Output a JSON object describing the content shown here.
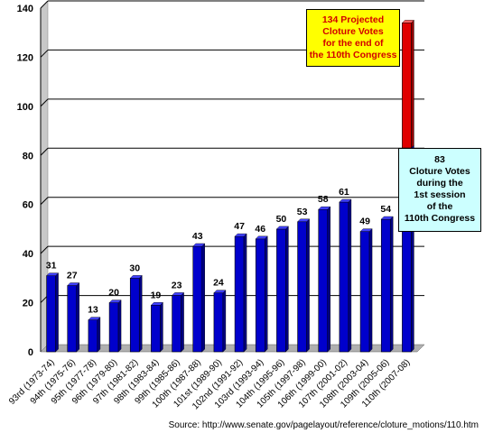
{
  "chart_data": {
    "type": "bar",
    "categories": [
      "93rd (1973-74)",
      "94th (1975-76)",
      "95th (1977-78)",
      "96th (1979-80)",
      "97th (1981-82)",
      "98th (1983-84)",
      "99th (1985-86)",
      "100th (1987-88)",
      "101st (1989-90)",
      "102nd (1991-92)",
      "103rd (1993-94)",
      "104th (1995-96)",
      "105th (1997-98)",
      "106th (1999-00)",
      "107th (2001-02)",
      "108th (2003-04)",
      "109th (2005-06)",
      "110th (2007-08)"
    ],
    "values": [
      31,
      27,
      13,
      20,
      30,
      19,
      23,
      43,
      24,
      47,
      46,
      50,
      53,
      58,
      61,
      49,
      54,
      83
    ],
    "data_labels": [
      "31",
      "27",
      "13",
      "20",
      "30",
      "19",
      "23",
      "43",
      "24",
      "47",
      "46",
      "50",
      "53",
      "58",
      "61",
      "49",
      "54",
      ""
    ],
    "projected": {
      "category": "110th (2007-08)",
      "value": 134
    },
    "ylim": [
      0,
      140
    ],
    "yticks": [
      "0",
      "20",
      "40",
      "60",
      "80",
      "100",
      "120",
      "140"
    ],
    "grid": true,
    "colors": {
      "bar": "#0000cc",
      "projected": "#e00000",
      "grid": "#000000",
      "floor": "#b0b0b0"
    }
  },
  "annotations": {
    "projected": {
      "text": "134 Projected\nCloture Votes\nfor the end of\nthe 110th Congress",
      "bg": "#ffff00",
      "color": "#d20000"
    },
    "actual": {
      "text": "83\nCloture Votes\nduring the\n1st session\nof the\n110th Congress",
      "bg": "#ccffff",
      "color": "#000000"
    }
  },
  "source": "Source: http://www.senate.gov/pagelayout/reference/cloture_motions/110.htm"
}
